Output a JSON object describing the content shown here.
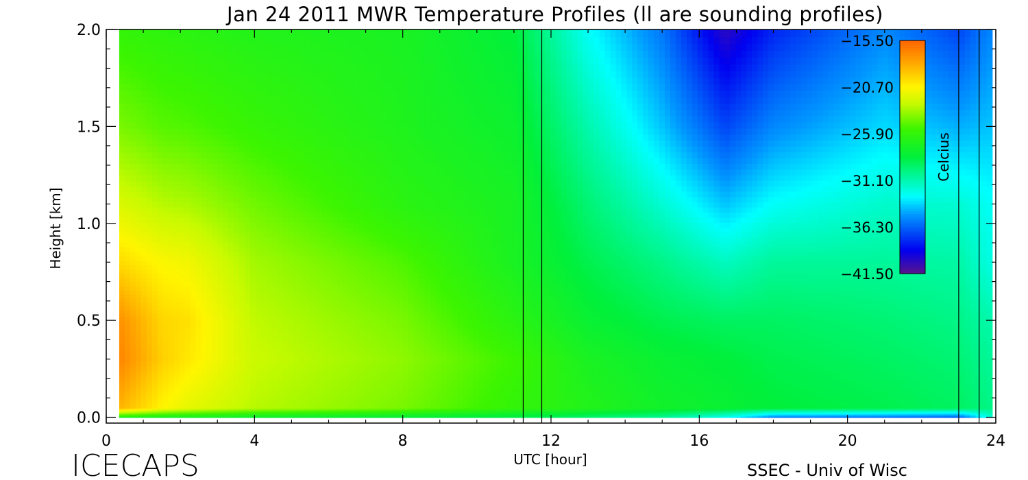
{
  "chart_data": {
    "type": "heatmap",
    "title": "Jan 24 2011 MWR Temperature Profiles (ll are sounding profiles)",
    "xlabel": "UTC [hour]",
    "ylabel": "Height [km]",
    "xlim": [
      0,
      24
    ],
    "ylim": [
      -0.03,
      2.0
    ],
    "x_ticks": [
      "0",
      "4",
      "8",
      "12",
      "16",
      "20",
      "24"
    ],
    "y_ticks": [
      "0.0",
      "0.5",
      "1.0",
      "1.5",
      "2.0"
    ],
    "colorbar": {
      "label": "Celcius",
      "range": [
        -44.1,
        -14.0
      ],
      "ticks": [
        "-15.50",
        "-20.70",
        "-25.90",
        "-31.10",
        "-36.30",
        "-41.50"
      ],
      "colormap": "rainbow"
    },
    "data_x_range_hours": [
      0.35,
      23.9
    ],
    "sounding_times_hours": [
      11.25,
      11.75,
      23.0,
      23.55
    ],
    "profiles": [
      {
        "hour": 0.4,
        "height_km": [
          0.0,
          0.05,
          0.3,
          0.5,
          0.8,
          1.1,
          1.5,
          2.0
        ],
        "temp_c": [
          -27.5,
          -17.5,
          -15.5,
          -16.0,
          -19.0,
          -21.5,
          -24.0,
          -26.0
        ]
      },
      {
        "hour": 1.5,
        "height_km": [
          0.0,
          0.05,
          0.3,
          0.5,
          0.8,
          1.1,
          1.5,
          2.0
        ],
        "temp_c": [
          -28.0,
          -20.0,
          -18.5,
          -18.8,
          -20.2,
          -22.5,
          -24.8,
          -26.3
        ]
      },
      {
        "hour": 2.2,
        "height_km": [
          0.0,
          0.05,
          0.3,
          0.5,
          0.8,
          1.1,
          1.5,
          2.0
        ],
        "temp_c": [
          -28.0,
          -21.0,
          -19.5,
          -19.2,
          -20.5,
          -22.8,
          -25.0,
          -26.5
        ]
      },
      {
        "hour": 4.0,
        "height_km": [
          0.0,
          0.05,
          0.3,
          0.5,
          0.8,
          1.1,
          1.5,
          2.0
        ],
        "temp_c": [
          -28.5,
          -22.5,
          -22.0,
          -22.3,
          -23.0,
          -24.2,
          -25.8,
          -27.0
        ]
      },
      {
        "hour": 8.0,
        "height_km": [
          0.0,
          0.05,
          0.3,
          0.5,
          0.8,
          1.1,
          1.5,
          2.0
        ],
        "temp_c": [
          -29.0,
          -24.0,
          -23.5,
          -24.0,
          -25.0,
          -26.5,
          -27.2,
          -27.5
        ]
      },
      {
        "hour": 11.0,
        "height_km": [
          0.0,
          0.05,
          0.3,
          0.5,
          0.8,
          1.1,
          1.5,
          2.0
        ],
        "temp_c": [
          -29.5,
          -26.0,
          -25.5,
          -26.5,
          -27.5,
          -27.6,
          -28.3,
          -29.0
        ]
      },
      {
        "hour": 13.0,
        "height_km": [
          0.0,
          0.05,
          0.3,
          0.5,
          0.8,
          1.1,
          1.5,
          2.0
        ],
        "temp_c": [
          -30.5,
          -27.0,
          -27.5,
          -28.5,
          -29.5,
          -30.5,
          -32.0,
          -34.0
        ]
      },
      {
        "hour": 15.0,
        "height_km": [
          0.0,
          0.05,
          0.3,
          0.5,
          0.8,
          1.1,
          1.5,
          2.0
        ],
        "temp_c": [
          -31.5,
          -28.0,
          -28.5,
          -29.5,
          -31.0,
          -33.0,
          -35.5,
          -37.5
        ]
      },
      {
        "hour": 16.7,
        "height_km": [
          0.0,
          0.05,
          0.3,
          0.5,
          0.8,
          1.1,
          1.5,
          2.0
        ],
        "temp_c": [
          -34.0,
          -28.5,
          -29.0,
          -30.0,
          -32.5,
          -35.5,
          -39.0,
          -42.5
        ]
      },
      {
        "hour": 18.0,
        "height_km": [
          0.0,
          0.05,
          0.3,
          0.5,
          0.8,
          1.1,
          1.5,
          2.0
        ],
        "temp_c": [
          -37.5,
          -29.0,
          -29.5,
          -30.0,
          -31.5,
          -34.0,
          -37.0,
          -40.0
        ]
      },
      {
        "hour": 21.0,
        "height_km": [
          0.0,
          0.05,
          0.3,
          0.5,
          0.8,
          1.1,
          1.5,
          2.0
        ],
        "temp_c": [
          -38.0,
          -29.5,
          -30.0,
          -30.5,
          -31.5,
          -32.8,
          -35.0,
          -37.0
        ]
      },
      {
        "hour": 23.0,
        "height_km": [
          0.0,
          0.05,
          0.3,
          0.5,
          0.8,
          1.1,
          1.5,
          2.0
        ],
        "temp_c": [
          -38.5,
          -30.0,
          -30.5,
          -31.0,
          -31.8,
          -33.0,
          -36.0,
          -39.0
        ]
      },
      {
        "hour": 23.9,
        "height_km": [
          0.0,
          0.05,
          0.3,
          0.5,
          0.8,
          1.1,
          1.5,
          2.0
        ],
        "temp_c": [
          -33.0,
          -31.0,
          -31.5,
          -32.0,
          -33.5,
          -34.0,
          -35.5,
          -37.0
        ]
      }
    ]
  },
  "footer": {
    "logo": "ICECAPS",
    "credit": "SSEC - Univ of Wisc"
  }
}
